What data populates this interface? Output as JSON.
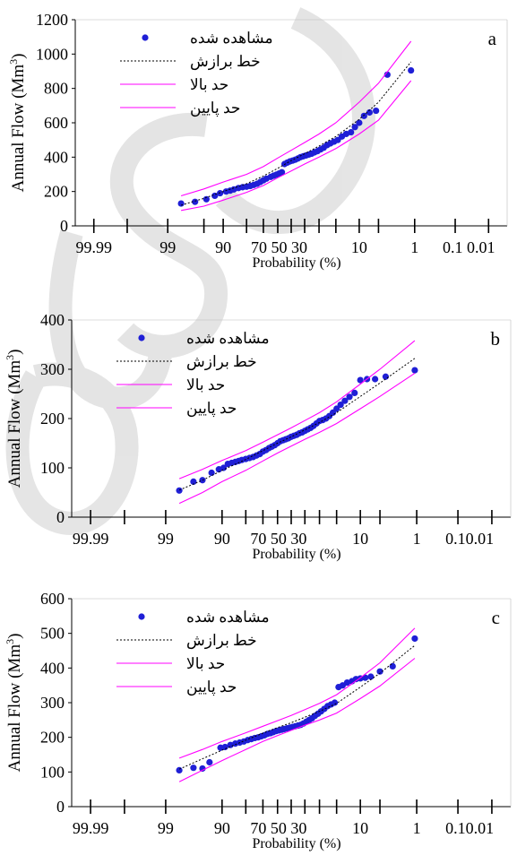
{
  "colors": {
    "observed": "#1f1fd6",
    "fitted": "#000000",
    "bounds": "#ff00ff",
    "axis": "#000000",
    "watermark": "#cfcfcf"
  },
  "chart_data": [
    {
      "type": "scatter",
      "panel_label": "a",
      "ylabel": "Annual Flow (Mm",
      "ylabel_sup": "3",
      "ylabel_close": ")",
      "xlabel": "Probability (%)",
      "x_scale": "normal-probability",
      "x_reversed": true,
      "ylim": [
        0,
        1200
      ],
      "yticks": [
        0,
        200,
        400,
        600,
        800,
        1000,
        1200
      ],
      "xtick_marks": [
        99.99,
        99.9,
        99,
        95,
        90,
        80,
        70,
        60,
        50,
        40,
        30,
        20,
        10,
        5,
        1,
        0.1,
        0.01
      ],
      "xtick_labels": [
        {
          "p": 99.99,
          "label": "99.99"
        },
        {
          "p": 99,
          "label": "99"
        },
        {
          "p": 90,
          "label": "90"
        },
        {
          "p": 70,
          "label": "70 50 30"
        },
        {
          "p": 10,
          "label": "10"
        },
        {
          "p": 1,
          "label": "1"
        },
        {
          "p": 0.1,
          "label": "0.1 0.01"
        }
      ],
      "legend": {
        "observed": "مشاهده شده",
        "fitted": "خط برازش",
        "upper": "حد بالا",
        "lower": "حد پایین"
      },
      "series": [
        {
          "name": "مشاهده شده",
          "kind": "points",
          "p": [
            98.1,
            96.5,
            94.5,
            92.5,
            91.0,
            89.0,
            87.5,
            86.0,
            84.0,
            82.0,
            80.0,
            78.0,
            76.0,
            74.0,
            72.0,
            70.0,
            68.0,
            65.0,
            63.0,
            61.0,
            59.0,
            57.0,
            55.0,
            53.0,
            51.0,
            49.0,
            47.0,
            45.0,
            43.0,
            41.0,
            39.0,
            37.0,
            35.0,
            33.0,
            31.0,
            29.0,
            27.0,
            25.0,
            23.0,
            21.0,
            19.0,
            17.0,
            15.0,
            13.0,
            11.5,
            10.0,
            8.5,
            7.0,
            5.5,
            3.5,
            1.2
          ],
          "values": [
            130,
            140,
            155,
            175,
            190,
            200,
            205,
            212,
            220,
            225,
            228,
            232,
            238,
            245,
            255,
            265,
            275,
            285,
            292,
            298,
            305,
            312,
            360,
            368,
            375,
            380,
            385,
            392,
            400,
            405,
            410,
            415,
            420,
            428,
            435,
            445,
            455,
            470,
            480,
            490,
            500,
            520,
            535,
            545,
            575,
            600,
            640,
            660,
            670,
            880,
            905
          ]
        },
        {
          "name": "خط برازش",
          "kind": "line",
          "p": [
            98.1,
            95,
            90,
            80,
            70,
            60,
            50,
            40,
            30,
            20,
            10,
            5,
            1.2
          ],
          "values": [
            120,
            160,
            200,
            245,
            290,
            335,
            380,
            420,
            465,
            520,
            620,
            720,
            955
          ]
        },
        {
          "name": "حد بالا",
          "kind": "line",
          "p": [
            98.1,
            95,
            90,
            80,
            70,
            60,
            50,
            40,
            30,
            20,
            10,
            5,
            1.2
          ],
          "values": [
            175,
            215,
            255,
            300,
            345,
            395,
            440,
            485,
            535,
            600,
            720,
            830,
            1075
          ]
        },
        {
          "name": "حد پایین",
          "kind": "line",
          "p": [
            98.1,
            95,
            90,
            80,
            70,
            60,
            50,
            40,
            30,
            20,
            10,
            5,
            1.2
          ],
          "values": [
            90,
            115,
            150,
            195,
            235,
            280,
            320,
            360,
            400,
            450,
            535,
            615,
            845
          ]
        }
      ]
    },
    {
      "type": "scatter",
      "panel_label": "b",
      "ylabel": "Annual Flow (Mm",
      "ylabel_sup": "3",
      "ylabel_close": ")",
      "xlabel": "Probability (%)",
      "x_scale": "normal-probability",
      "x_reversed": true,
      "ylim": [
        0,
        400
      ],
      "yticks": [
        0,
        100,
        200,
        300,
        400
      ],
      "xtick_marks": [
        99.99,
        99.9,
        99,
        90,
        80,
        70,
        60,
        50,
        40,
        30,
        20,
        10,
        5,
        1,
        0.1,
        0.01
      ],
      "xtick_labels": [
        {
          "p": 99.99,
          "label": "99.99"
        },
        {
          "p": 99,
          "label": "99"
        },
        {
          "p": 90,
          "label": "90"
        },
        {
          "p": 70,
          "label": "70 50 30"
        },
        {
          "p": 10,
          "label": "10"
        },
        {
          "p": 1,
          "label": "1"
        },
        {
          "p": 0.1,
          "label": "0.10.01"
        }
      ],
      "legend": {
        "observed": "مشاهده شده",
        "fitted": "خط برازش",
        "upper": "حد بالا",
        "lower": "حد پایین"
      },
      "series": [
        {
          "name": "مشاهده شده",
          "kind": "points",
          "p": [
            98.1,
            96.5,
            95.0,
            93.0,
            91.0,
            89.5,
            88.0,
            86.5,
            85.0,
            83.5,
            82.0,
            80.0,
            78.0,
            76.0,
            74.0,
            72.0,
            70.0,
            68.0,
            66.0,
            64.0,
            62.0,
            60.0,
            58.0,
            56.0,
            54.0,
            52.0,
            50.0,
            48.0,
            46.0,
            44.0,
            42.0,
            40.0,
            38.0,
            36.0,
            34.0,
            32.0,
            30.0,
            28.0,
            26.0,
            24.0,
            22.0,
            20.0,
            18.0,
            16.0,
            14.0,
            12.0,
            10.0,
            8.0,
            6.0,
            4.0,
            1.1
          ],
          "values": [
            54,
            72,
            75,
            90,
            97,
            100,
            108,
            110,
            112,
            114,
            116,
            118,
            120,
            122,
            125,
            128,
            133,
            136,
            140,
            143,
            146,
            150,
            154,
            156,
            158,
            160,
            163,
            165,
            167,
            170,
            172,
            175,
            178,
            181,
            185,
            190,
            195,
            197,
            200,
            205,
            212,
            220,
            228,
            236,
            244,
            252,
            278,
            280,
            280,
            285,
            298
          ]
        },
        {
          "name": "خط برازش",
          "kind": "line",
          "p": [
            98.1,
            95,
            90,
            80,
            70,
            60,
            50,
            40,
            30,
            20,
            10,
            5,
            1.1
          ],
          "values": [
            55,
            75,
            95,
            117,
            135,
            150,
            163,
            177,
            192,
            212,
            245,
            272,
            322
          ]
        },
        {
          "name": "حد بالا",
          "kind": "line",
          "p": [
            98.1,
            95,
            90,
            80,
            70,
            60,
            50,
            40,
            30,
            20,
            10,
            5,
            1.1
          ],
          "values": [
            78,
            97,
            115,
            135,
            152,
            167,
            181,
            196,
            212,
            234,
            270,
            300,
            358
          ]
        },
        {
          "name": "حد پایین",
          "kind": "line",
          "p": [
            98.1,
            95,
            90,
            80,
            70,
            60,
            50,
            40,
            30,
            20,
            10,
            5,
            1.1
          ],
          "values": [
            28,
            50,
            72,
            95,
            114,
            130,
            144,
            158,
            172,
            190,
            220,
            245,
            292
          ]
        }
      ]
    },
    {
      "type": "scatter",
      "panel_label": "c",
      "ylabel": "Annual Flow (Mm",
      "ylabel_sup": "3",
      "ylabel_close": ")",
      "xlabel": "Probability (%)",
      "x_scale": "normal-probability",
      "x_reversed": true,
      "ylim": [
        0,
        600
      ],
      "yticks": [
        0,
        100,
        200,
        300,
        400,
        500,
        600
      ],
      "xtick_marks": [
        99.99,
        99.9,
        99,
        90,
        80,
        70,
        60,
        50,
        40,
        30,
        20,
        10,
        5,
        1,
        0.1,
        0.01
      ],
      "xtick_labels": [
        {
          "p": 99.99,
          "label": "99.99"
        },
        {
          "p": 99,
          "label": "99"
        },
        {
          "p": 90,
          "label": "90"
        },
        {
          "p": 70,
          "label": "70 50 30"
        },
        {
          "p": 10,
          "label": "10"
        },
        {
          "p": 1,
          "label": "1"
        },
        {
          "p": 0.1,
          "label": "0.10.01"
        }
      ],
      "legend": {
        "observed": "مشاهده شده",
        "fitted": "خط برازش",
        "upper": "حد بالا",
        "lower": "حد پایین"
      },
      "series": [
        {
          "name": "مشاهده شده",
          "kind": "points",
          "p": [
            98.1,
            96.5,
            95.0,
            93.5,
            90.5,
            89.0,
            87.0,
            85.0,
            83.0,
            81.0,
            79.0,
            77.0,
            75.0,
            73.0,
            71.0,
            69.0,
            67.0,
            65.0,
            63.0,
            61.0,
            59.0,
            57.0,
            55.0,
            53.0,
            51.0,
            49.0,
            47.0,
            45.0,
            43.0,
            41.0,
            39.0,
            37.0,
            35.0,
            33.0,
            31.0,
            29.0,
            27.0,
            25.0,
            23.0,
            21.0,
            19.0,
            17.0,
            15.0,
            13.0,
            11.5,
            10.0,
            8.5,
            7.0,
            5.0,
            3.0,
            1.1
          ],
          "values": [
            105,
            112,
            110,
            128,
            170,
            172,
            178,
            182,
            185,
            188,
            192,
            195,
            198,
            200,
            203,
            206,
            210,
            212,
            215,
            218,
            220,
            222,
            224,
            226,
            228,
            230,
            232,
            234,
            236,
            240,
            245,
            250,
            255,
            262,
            268,
            275,
            282,
            290,
            295,
            300,
            345,
            350,
            358,
            362,
            368,
            370,
            372,
            375,
            390,
            405,
            485
          ]
        },
        {
          "name": "خط برازش",
          "kind": "line",
          "p": [
            98.1,
            95,
            90,
            80,
            70,
            60,
            50,
            40,
            30,
            20,
            10,
            5,
            1.1
          ],
          "values": [
            108,
            138,
            163,
            192,
            212,
            228,
            242,
            258,
            275,
            298,
            345,
            385,
            465
          ]
        },
        {
          "name": "حد بالا",
          "kind": "line",
          "p": [
            98.1,
            95,
            90,
            80,
            70,
            60,
            50,
            40,
            30,
            20,
            10,
            5,
            1.1
          ],
          "values": [
            140,
            165,
            188,
            213,
            232,
            248,
            263,
            280,
            298,
            323,
            372,
            415,
            515
          ]
        },
        {
          "name": "حد پایین",
          "kind": "line",
          "p": [
            98.1,
            95,
            90,
            80,
            70,
            60,
            50,
            40,
            30,
            20,
            10,
            5,
            1.1
          ],
          "values": [
            72,
            105,
            133,
            165,
            188,
            205,
            220,
            235,
            250,
            270,
            312,
            348,
            428
          ]
        }
      ]
    }
  ]
}
